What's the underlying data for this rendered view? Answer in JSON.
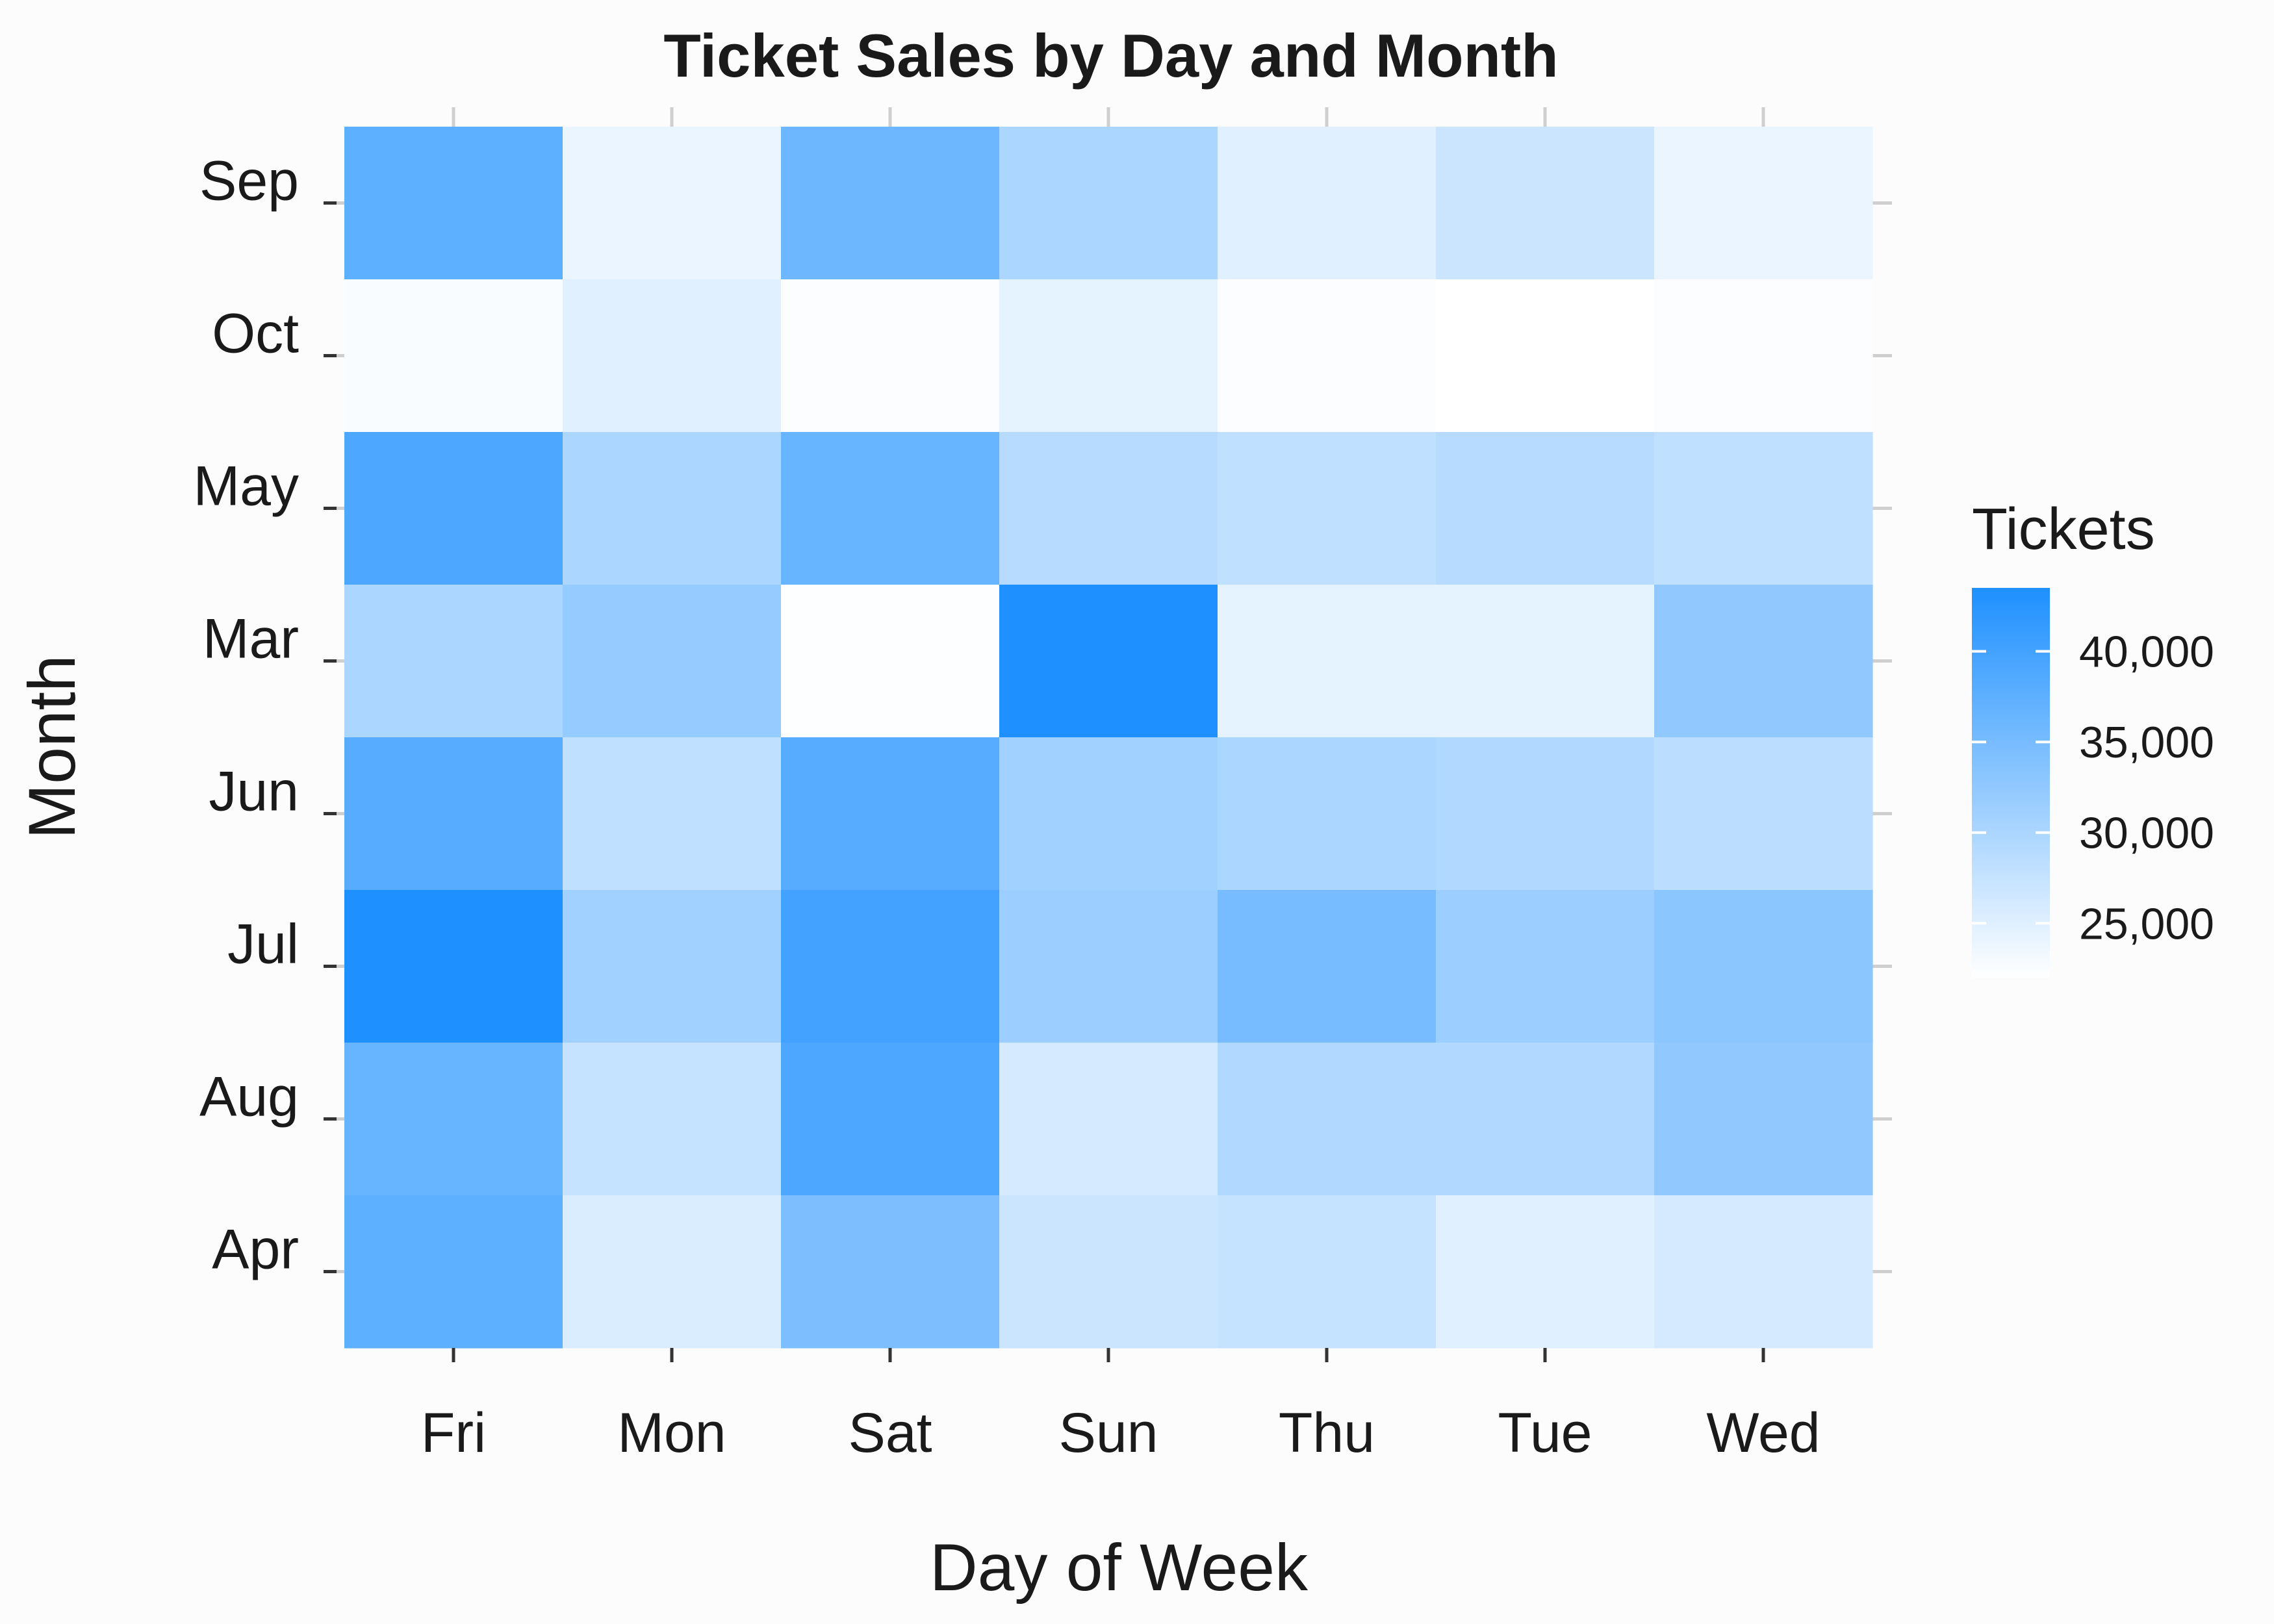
{
  "chart_data": {
    "type": "heatmap",
    "title": "Ticket Sales by Day and Month",
    "xlabel": "Day of Week",
    "ylabel": "Month",
    "x_categories": [
      "Fri",
      "Mon",
      "Sat",
      "Sun",
      "Thu",
      "Tue",
      "Wed"
    ],
    "y_categories": [
      "Sep",
      "Oct",
      "May",
      "Mar",
      "Jun",
      "Jul",
      "Aug",
      "Apr"
    ],
    "values": [
      [
        37500,
        24000,
        36000,
        30000,
        25000,
        27000,
        24000
      ],
      [
        22600,
        25000,
        22400,
        24500,
        22300,
        22000,
        22400
      ],
      [
        39000,
        30000,
        36500,
        29000,
        28000,
        29000,
        28000
      ],
      [
        30000,
        32000,
        22200,
        43500,
        24500,
        24500,
        32500
      ],
      [
        38000,
        28000,
        38000,
        31000,
        30000,
        29500,
        28500
      ],
      [
        43500,
        31000,
        40000,
        31500,
        35000,
        31500,
        33000
      ],
      [
        36500,
        27500,
        39000,
        26000,
        29500,
        29500,
        32500
      ],
      [
        37500,
        25500,
        34500,
        27000,
        27500,
        25000,
        26000
      ]
    ],
    "legend": {
      "title": "Tickets",
      "ticks": [
        25000,
        30000,
        35000,
        40000
      ],
      "tick_labels": [
        "25,000",
        "30,000",
        "35,000",
        "40,000"
      ],
      "min": 22000,
      "max": 43500,
      "color_low": "#ffffff",
      "color_high": "#1e90ff",
      "placement": "right"
    },
    "grid": true
  }
}
